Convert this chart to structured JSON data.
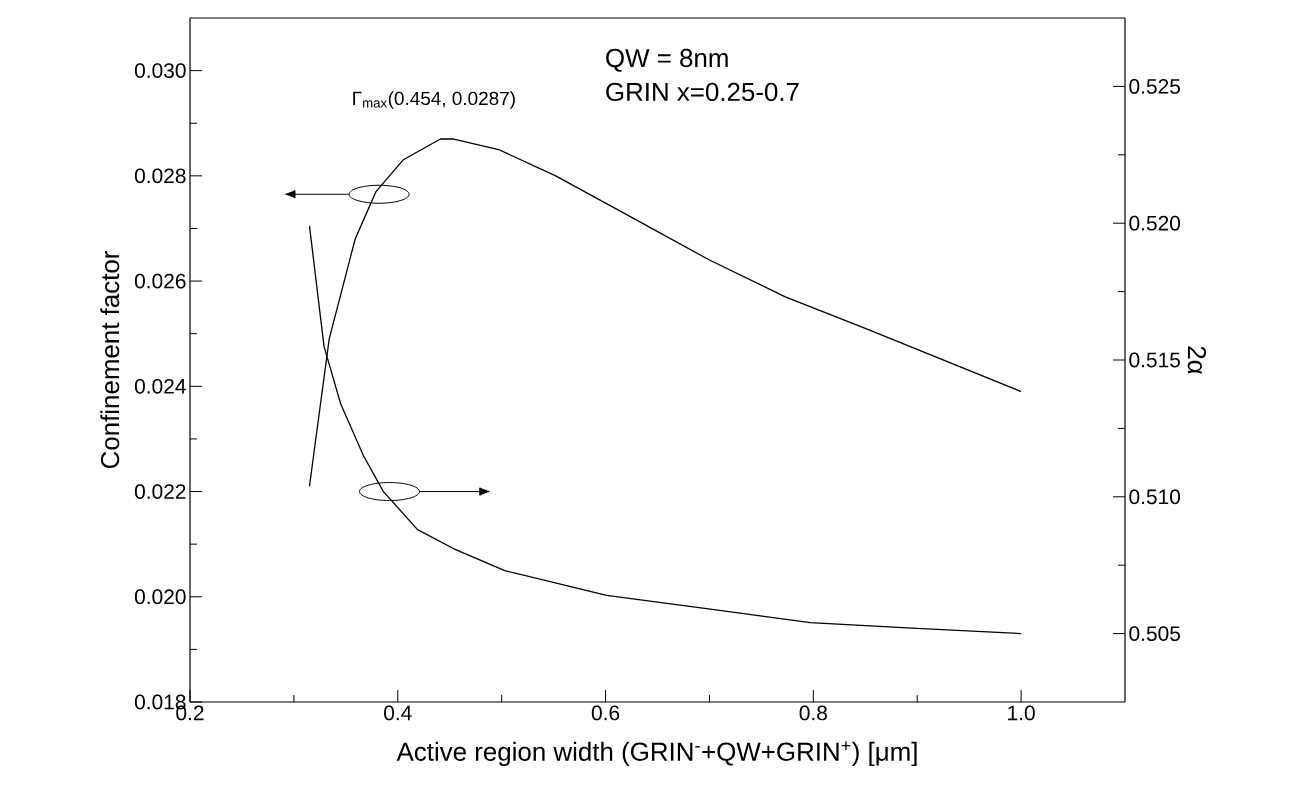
{
  "chart_data": {
    "type": "line",
    "xlabel": "Active region width (GRIN$^{-}$+QW+GRIN$^{+}$) [μm]",
    "ylabel": "Confinement factor",
    "y2label": "2α",
    "xlim": [
      0.2,
      1.1
    ],
    "xticks": [
      0.2,
      0.4,
      0.6,
      0.8,
      {
        "value": 1.0,
        "label": "1.0"
      }
    ],
    "ylim": [
      0.018,
      0.031
    ],
    "yticks": [
      0.018,
      {
        "value": 0.02,
        "label": "0.020"
      },
      0.022,
      0.024,
      0.026,
      0.028,
      {
        "value": 0.03,
        "label": "0.030"
      }
    ],
    "y2lim": [
      0.5025,
      0.5275
    ],
    "y2ticks": [
      0.505,
      {
        "value": 0.51,
        "label": "0.510"
      },
      0.515,
      {
        "value": 0.52,
        "label": "0.520"
      },
      0.525
    ],
    "series": [
      {
        "color": "#000000",
        "axis": "y",
        "x": [
          0.315,
          0.334,
          0.359,
          0.379,
          0.405,
          0.441,
          0.454,
          0.497,
          0.552,
          0.626,
          0.7,
          0.773,
          0.85,
          0.925,
          1.0
        ],
        "values": [
          0.0221,
          0.0249,
          0.0268,
          0.0277,
          0.0283,
          0.0287,
          0.0287,
          0.0285,
          0.028,
          0.0272,
          0.0264,
          0.0257,
          0.0251,
          0.0245,
          0.0239
        ]
      },
      {
        "color": "#000000",
        "axis": "y2",
        "x": [
          0.315,
          0.329,
          0.345,
          0.367,
          0.386,
          0.419,
          0.454,
          0.503,
          0.601,
          0.699,
          0.797,
          0.895,
          1.0
        ],
        "values": [
          0.5199,
          0.5155,
          0.5134,
          0.5115,
          0.5102,
          0.5088,
          0.5081,
          0.5073,
          0.5064,
          0.5059,
          0.5054,
          0.5052,
          0.505
        ]
      }
    ],
    "annotations": [
      {
        "text": "Γ$_{max}$(0.454, 0.0287)",
        "x": 0.454,
        "y": 0.0287
      },
      "QW = 8nm",
      "GRIN x=0.25-0.7"
    ]
  }
}
